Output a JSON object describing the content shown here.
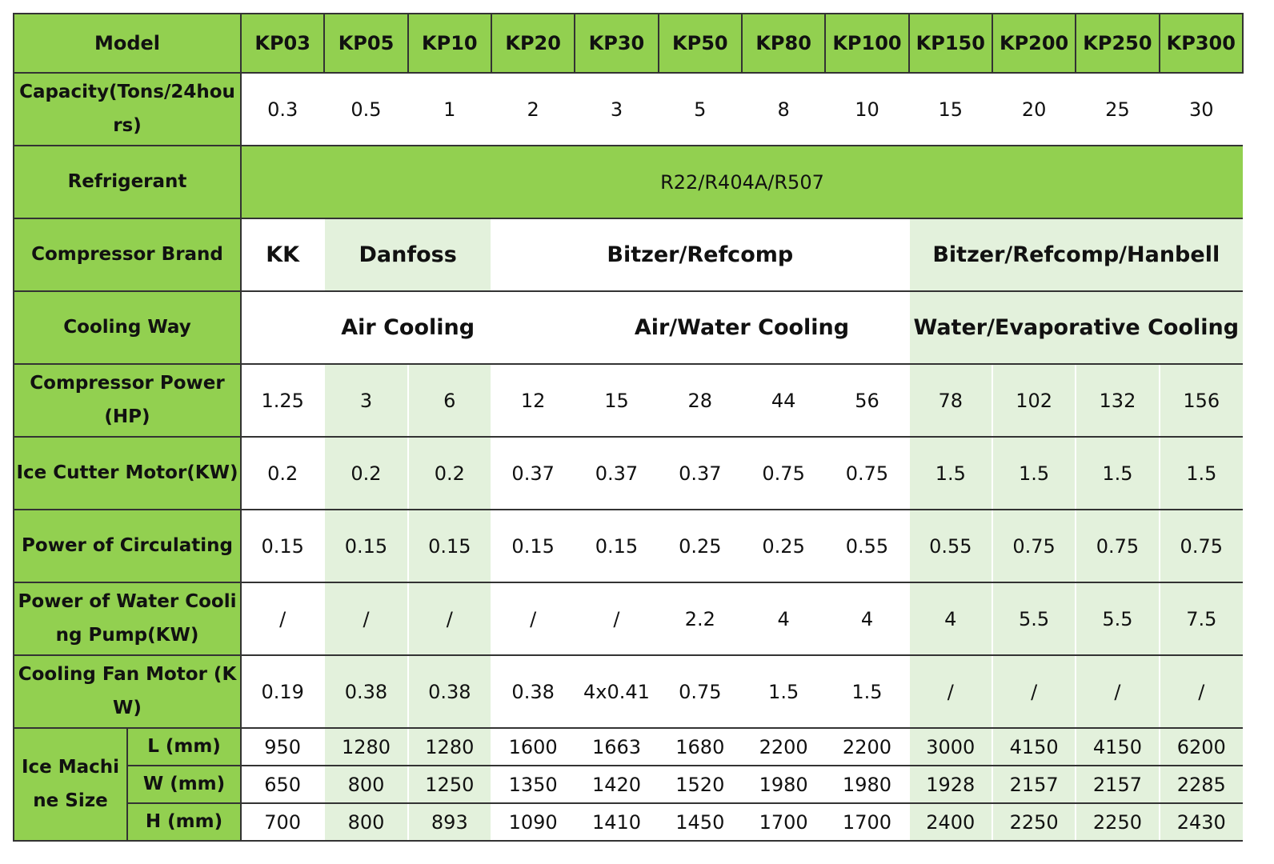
{
  "table": {
    "header": {
      "label": "Model",
      "models": [
        "KP03",
        "KP05",
        "KP10",
        "KP20",
        "KP30",
        "KP50",
        "KP80",
        "KP100",
        "KP150",
        "KP200",
        "KP250",
        "KP300"
      ]
    },
    "rows": [
      {
        "label": "Capacity(Tons/24hours)",
        "values": [
          "0.3",
          "0.5",
          "1",
          "2",
          "3",
          "5",
          "8",
          "10",
          "15",
          "20",
          "25",
          "30"
        ]
      },
      {
        "label": "Refrigerant",
        "values": [
          "R22/R404A/R507"
        ]
      },
      {
        "label": "Compressor Brand",
        "values": [
          "KK",
          "Danfoss",
          "Bitzer/Refcomp",
          "Bitzer/Refcomp/Hanbell"
        ]
      },
      {
        "label": "Cooling Way",
        "values": [
          "Air Cooling",
          "Air/Water Cooling",
          "Water/Evaporative Cooling"
        ]
      },
      {
        "label": "Compressor Power (HP)",
        "values": [
          "1.25",
          "3",
          "6",
          "12",
          "15",
          "28",
          "44",
          "56",
          "78",
          "102",
          "132",
          "156"
        ]
      },
      {
        "label": "Ice Cutter Motor(KW)",
        "values": [
          "0.2",
          "0.2",
          "0.2",
          "0.37",
          "0.37",
          "0.37",
          "0.75",
          "0.75",
          "1.5",
          "1.5",
          "1.5",
          "1.5"
        ]
      },
      {
        "label": "Power of Circulating",
        "values": [
          "0.15",
          "0.15",
          "0.15",
          "0.15",
          "0.15",
          "0.25",
          "0.25",
          "0.55",
          "0.55",
          "0.75",
          "0.75",
          "0.75"
        ]
      },
      {
        "label": "Power of Water Cooling Pump(KW)",
        "values": [
          "/",
          "/",
          "/",
          "/",
          "/",
          "2.2",
          "4",
          "4",
          "4",
          "5.5",
          "5.5",
          "7.5"
        ]
      },
      {
        "label": "Cooling Fan Motor (KW)",
        "values": [
          "0.19",
          "0.38",
          "0.38",
          "0.38",
          "4x0.41",
          "0.75",
          "1.5",
          "1.5",
          "/",
          "/",
          "/",
          "/"
        ]
      }
    ],
    "size": {
      "label": "Ice Machine Size",
      "rows": [
        {
          "label": "L (mm)",
          "values": [
            "950",
            "1280",
            "1280",
            "1600",
            "1663",
            "1680",
            "2200",
            "2200",
            "3000",
            "4150",
            "4150",
            "6200"
          ]
        },
        {
          "label": "W (mm)",
          "values": [
            "650",
            "800",
            "1250",
            "1350",
            "1420",
            "1520",
            "1980",
            "1980",
            "1928",
            "2157",
            "2157",
            "2285"
          ]
        },
        {
          "label": "H (mm)",
          "values": [
            "700",
            "800",
            "893",
            "1090",
            "1410",
            "1450",
            "1700",
            "1700",
            "2400",
            "2250",
            "2250",
            "2430"
          ]
        }
      ]
    }
  }
}
